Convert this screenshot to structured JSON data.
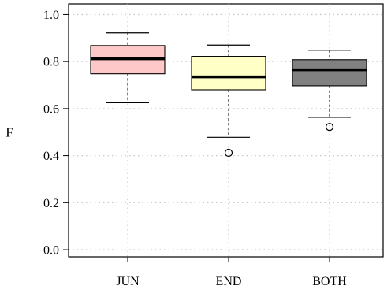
{
  "chart_data": {
    "type": "box",
    "title": "",
    "xlabel": "",
    "ylabel": "F",
    "ylim": [
      -0.03,
      1.045
    ],
    "yticks": [
      0.0,
      0.2,
      0.4,
      0.6,
      0.8,
      1.0
    ],
    "ytick_labels": [
      "0.0",
      "0.2",
      "0.4",
      "0.6",
      "0.8",
      "1.0"
    ],
    "categories": [
      "JUN",
      "END",
      "BOTH"
    ],
    "grid": true,
    "boxes": [
      {
        "category": "JUN",
        "whisker_low": 0.625,
        "q1": 0.748,
        "median": 0.812,
        "q3": 0.868,
        "whisker_high": 0.922,
        "outliers": [],
        "color": "#ffc8c8"
      },
      {
        "category": "END",
        "whisker_low": 0.478,
        "q1": 0.68,
        "median": 0.735,
        "q3": 0.822,
        "whisker_high": 0.87,
        "outliers": [
          0.412
        ],
        "color": "#ffffc6"
      },
      {
        "category": "BOTH",
        "whisker_low": 0.563,
        "q1": 0.697,
        "median": 0.765,
        "q3": 0.808,
        "whisker_high": 0.848,
        "outliers": [
          0.522
        ],
        "color": "#808080"
      }
    ]
  }
}
